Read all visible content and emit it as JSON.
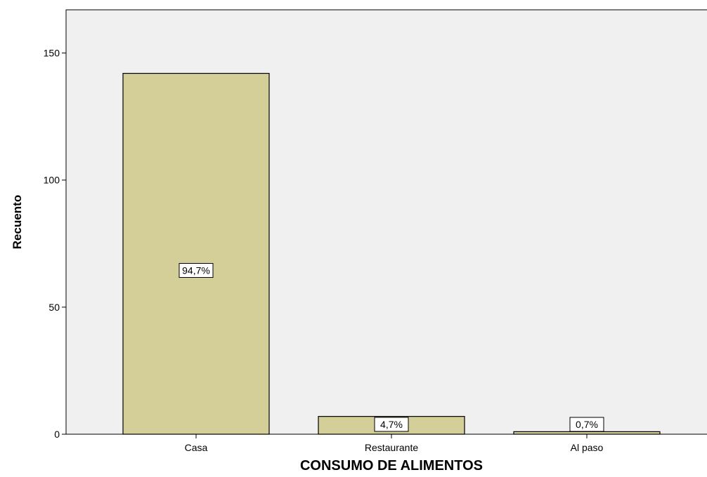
{
  "chart_data": {
    "type": "bar",
    "categories": [
      "Casa",
      "Restaurante",
      "Al paso"
    ],
    "values": [
      142,
      7,
      1
    ],
    "data_labels": [
      "94,7%",
      "4,7%",
      "0,7%"
    ],
    "title": "",
    "xlabel": "CONSUMO DE ALIMENTOS",
    "ylabel": "Recuento",
    "ylim": [
      0,
      167
    ],
    "yticks": [
      0,
      50,
      100,
      150
    ],
    "grid": false,
    "colors": {
      "bar_fill": "#d4cf98",
      "bar_stroke": "#000000",
      "plot_background": "#f0f0f0",
      "label_box": "#ffffff"
    }
  }
}
